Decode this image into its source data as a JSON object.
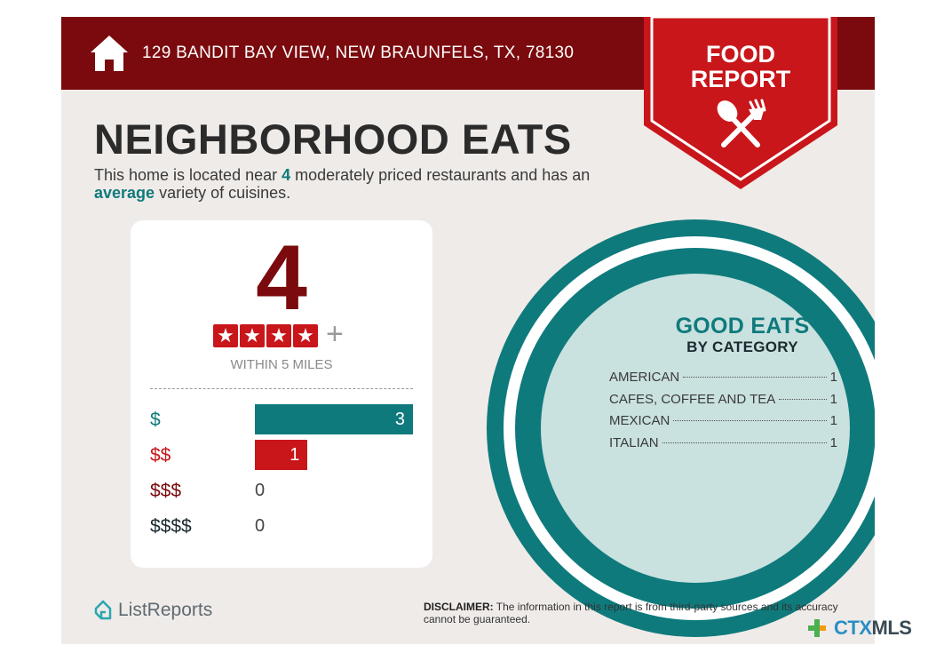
{
  "header": {
    "address": "129 BANDIT BAY VIEW, NEW BRAUNFELS, TX, 78130",
    "badge_line1": "FOOD",
    "badge_line2": "REPORT",
    "icon": "home-icon"
  },
  "title": "NEIGHBORHOOD EATS",
  "intro": {
    "part1": "This home is located near ",
    "count": "4",
    "part2": " moderately priced restaurants and has an ",
    "variety": "average",
    "part3": " variety of cuisines."
  },
  "summary": {
    "count": "4",
    "rating": 4,
    "rating_max": 4,
    "star_glyph": "★",
    "plus": "+",
    "within": "WITHIN 5 MILES"
  },
  "price_tiers": [
    {
      "label": "$",
      "value": 3,
      "color": "#0f7a7c"
    },
    {
      "label": "$$",
      "value": 1,
      "color": "#c8161b"
    },
    {
      "label": "$$$",
      "value": 0,
      "color": "#7a0a0d"
    },
    {
      "label": "$$$$",
      "value": 0,
      "color": "#1a2a2e"
    }
  ],
  "price_max": 3,
  "good_eats": {
    "title": "GOOD EATS",
    "subtitle": "BY CATEGORY",
    "categories": [
      {
        "name": "AMERICAN",
        "count": "1"
      },
      {
        "name": "CAFES, COFFEE AND TEA",
        "count": "1"
      },
      {
        "name": "MEXICAN",
        "count": "1"
      },
      {
        "name": "ITALIAN",
        "count": "1"
      }
    ]
  },
  "footer": {
    "logo_text": "ListReports",
    "disclaimer_label": "DISCLAIMER:",
    "disclaimer_text": " The information in this report is from third-party sources and its accuracy cannot be guaranteed.",
    "partner_logo_a": "CTX",
    "partner_logo_b": "MLS"
  },
  "colors": {
    "maroon": "#7a0a0d",
    "red": "#c8161b",
    "teal": "#0f7a7c",
    "plate_inner": "#c9e1df",
    "background": "#efebe8"
  }
}
